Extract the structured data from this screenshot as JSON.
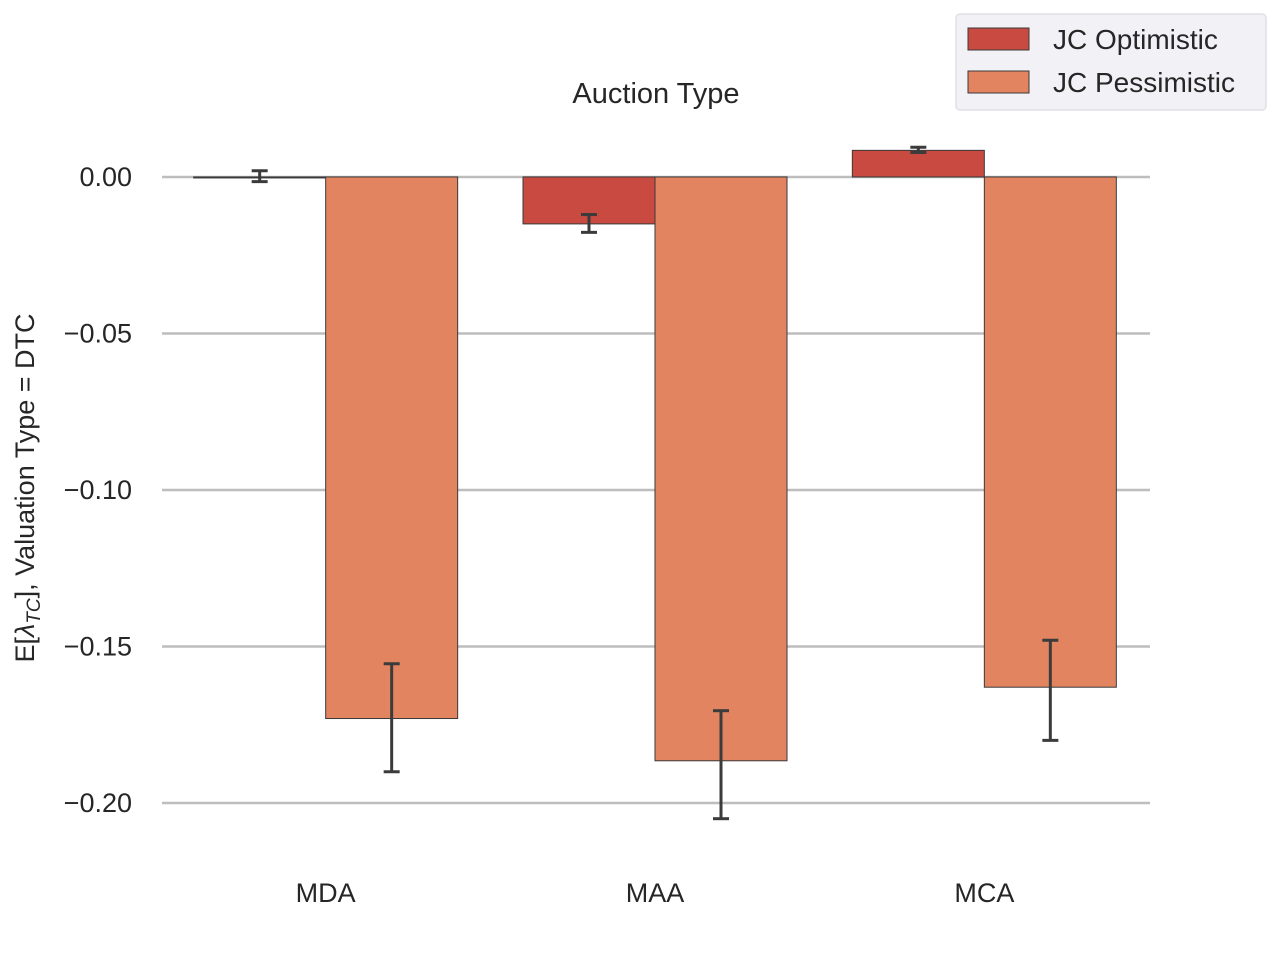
{
  "chart_data": {
    "type": "bar",
    "title": "Auction Type",
    "xlabel": "",
    "ylabel_prefix": "E[",
    "ylabel_symbol": "λ",
    "ylabel_subscript": "TC",
    "ylabel_suffix": "], Valuation Type = DTC",
    "categories": [
      "MDA",
      "MAA",
      "MCA"
    ],
    "ylim": [
      -0.215,
      0.015
    ],
    "yticks": [
      0.0,
      -0.05,
      -0.1,
      -0.15,
      -0.2
    ],
    "ytick_labels": [
      "0.00",
      "−0.05",
      "−0.10",
      "−0.15",
      "−0.20"
    ],
    "grid": true,
    "legend_position": "top-right",
    "series": [
      {
        "name": "JC Optimistic",
        "color": "#c84a40",
        "values": [
          0.0,
          -0.015,
          0.0085
        ],
        "err_low": [
          -0.0015,
          -0.0177,
          0.0078
        ],
        "err_high": [
          0.002,
          -0.012,
          0.0095
        ]
      },
      {
        "name": "JC Pessimistic",
        "color": "#e28460",
        "values": [
          -0.173,
          -0.1865,
          -0.163
        ],
        "err_low": [
          -0.19,
          -0.205,
          -0.18
        ],
        "err_high": [
          -0.1555,
          -0.1705,
          -0.148
        ]
      }
    ]
  }
}
